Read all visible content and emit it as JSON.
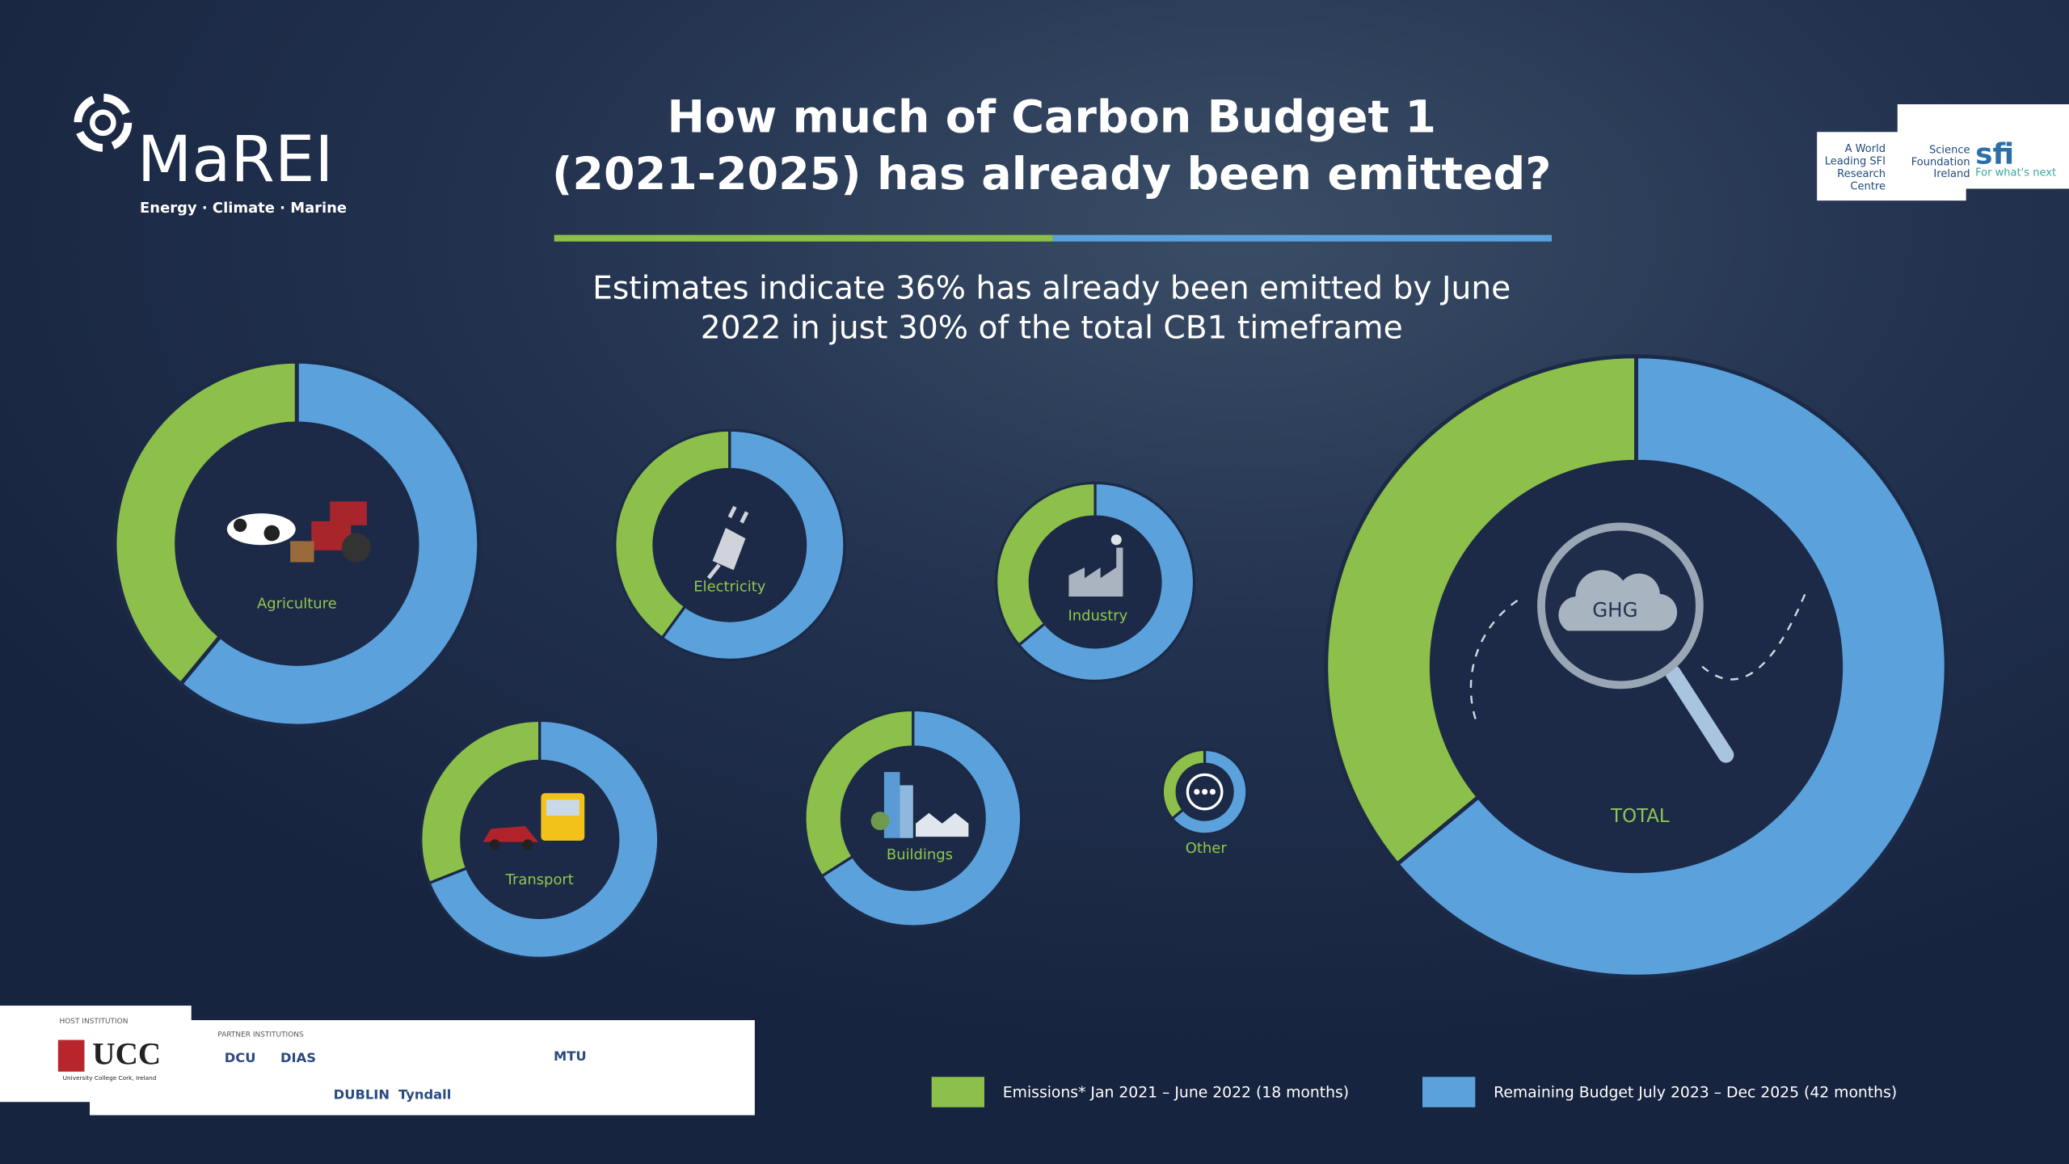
{
  "brand": {
    "name": "MaREI",
    "tagline": "Energy · Climate · Marine"
  },
  "partner_logo": {
    "lines": [
      "A World",
      "Leading SFI",
      "Research",
      "Centre"
    ],
    "sfi_lines": [
      "Science",
      "Foundation",
      "Ireland"
    ],
    "sfi": "sfi",
    "sfi_tagline": "For what's next"
  },
  "header": {
    "title_lines": [
      "How much of Carbon Budget 1",
      "(2021-2025) has already been emitted?"
    ],
    "subtitle_lines": [
      "Estimates indicate 36% has already been emitted by June",
      "2022 in just 30% of the total CB1 timeframe"
    ]
  },
  "legend": {
    "items": [
      {
        "name": "Emissions* Jan 2021 – June 2022 (18 months)",
        "color": "#8cc04b"
      },
      {
        "name": "Remaining Budget July 2023 – Dec 2025 (42 months)",
        "color": "#5ba2dc"
      }
    ]
  },
  "center_icon": "GHG",
  "footer": {
    "host": "HOST INSTITUTION",
    "ucc": "UCC",
    "ucc_sub": "University College Cork, Ireland",
    "partners": "PARTNER  INSTITUTIONS",
    "partner_names": [
      "DCU",
      "DIAS",
      "MTU",
      "Tyndall",
      "DUBLIN"
    ]
  },
  "chart_data": [
    {
      "type": "donut",
      "title": "Agriculture",
      "values": [
        39,
        61
      ],
      "colors": [
        "#8cc04b",
        "#5ba2dc"
      ]
    },
    {
      "type": "donut",
      "title": "Electricity",
      "values": [
        40,
        60
      ],
      "colors": [
        "#8cc04b",
        "#5ba2dc"
      ]
    },
    {
      "type": "donut",
      "title": "Industry",
      "values": [
        36,
        64
      ],
      "colors": [
        "#8cc04b",
        "#5ba2dc"
      ]
    },
    {
      "type": "donut",
      "title": "Transport",
      "values": [
        31,
        69
      ],
      "colors": [
        "#8cc04b",
        "#5ba2dc"
      ]
    },
    {
      "type": "donut",
      "title": "Buildings",
      "values": [
        34,
        66
      ],
      "colors": [
        "#8cc04b",
        "#5ba2dc"
      ]
    },
    {
      "type": "donut",
      "title": "Other",
      "values": [
        36,
        64
      ],
      "colors": [
        "#8cc04b",
        "#5ba2dc"
      ]
    },
    {
      "type": "donut",
      "title": "TOTAL",
      "values": [
        36,
        64
      ],
      "colors": [
        "#8cc04b",
        "#5ba2dc"
      ]
    }
  ]
}
